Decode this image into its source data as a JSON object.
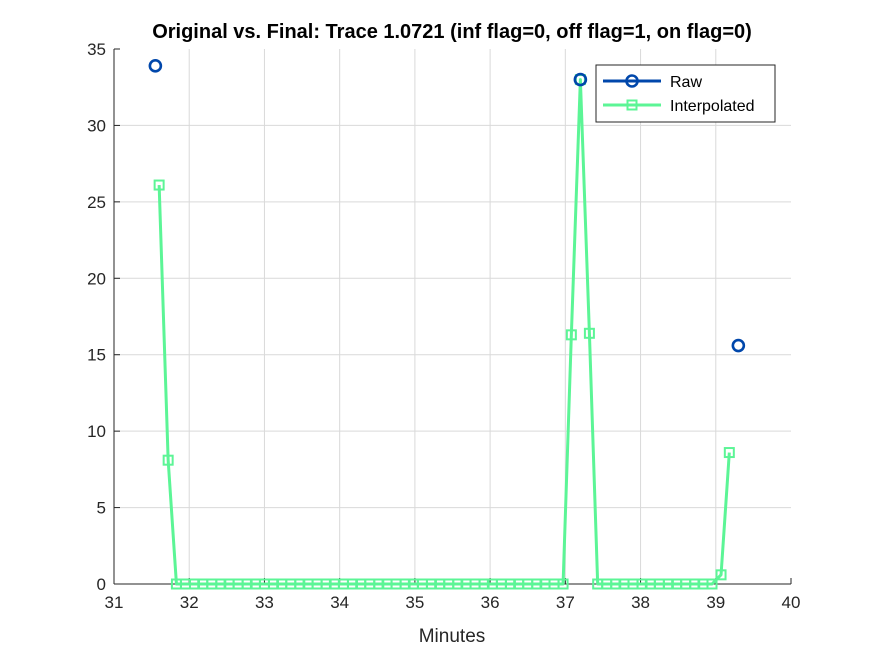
{
  "chart_data": {
    "type": "line",
    "title": "Original vs. Final: Trace 1.0721 (inf flag=0, off flag=1, on flag=0)",
    "xlabel": "Minutes",
    "ylabel": "",
    "xlim": [
      31,
      40
    ],
    "ylim": [
      0,
      35
    ],
    "xticks": [
      31,
      32,
      33,
      34,
      35,
      36,
      37,
      38,
      39,
      40
    ],
    "yticks": [
      0,
      5,
      10,
      15,
      20,
      25,
      30,
      35
    ],
    "xtick_labels": [
      "31",
      "32",
      "33",
      "34",
      "35",
      "36",
      "37",
      "38",
      "39",
      "40"
    ],
    "ytick_labels": [
      "0",
      "5",
      "10",
      "15",
      "20",
      "25",
      "30",
      "35"
    ],
    "grid": true,
    "legend_position": "top-right",
    "series": [
      {
        "name": "Raw",
        "color": "#0047ab",
        "marker": "circle",
        "line": false,
        "x": [
          31.55,
          37.2,
          39.3
        ],
        "y": [
          33.9,
          33.0,
          15.6
        ]
      },
      {
        "name": "Interpolated",
        "color": "#5cf596",
        "marker": "square",
        "line": true,
        "x": [
          31.6,
          31.72,
          31.83,
          31.95,
          32.07,
          32.18,
          32.3,
          32.42,
          32.53,
          32.65,
          32.77,
          32.88,
          33.0,
          33.12,
          33.23,
          33.35,
          33.47,
          33.58,
          33.7,
          33.82,
          33.93,
          34.05,
          34.17,
          34.28,
          34.4,
          34.52,
          34.63,
          34.75,
          34.87,
          34.98,
          35.1,
          35.22,
          35.33,
          35.45,
          35.57,
          35.68,
          35.8,
          35.92,
          36.03,
          36.15,
          36.27,
          36.38,
          36.5,
          36.62,
          36.73,
          36.85,
          36.97,
          37.08,
          37.2,
          37.32,
          37.43,
          37.55,
          37.67,
          37.78,
          37.9,
          38.02,
          38.13,
          38.25,
          38.37,
          38.48,
          38.6,
          38.72,
          38.83,
          38.95,
          39.07,
          39.18
        ],
        "y": [
          26.1,
          8.1,
          0,
          0,
          0,
          0,
          0,
          0,
          0,
          0,
          0,
          0,
          0,
          0,
          0,
          0,
          0,
          0,
          0,
          0,
          0,
          0,
          0,
          0,
          0,
          0,
          0,
          0,
          0,
          0,
          0,
          0,
          0,
          0,
          0,
          0,
          0,
          0,
          0,
          0,
          0,
          0,
          0,
          0,
          0,
          0,
          0,
          16.3,
          33.0,
          16.4,
          0,
          0,
          0,
          0,
          0,
          0,
          0,
          0,
          0,
          0,
          0,
          0,
          0,
          0,
          0.6,
          8.6
        ]
      }
    ]
  }
}
